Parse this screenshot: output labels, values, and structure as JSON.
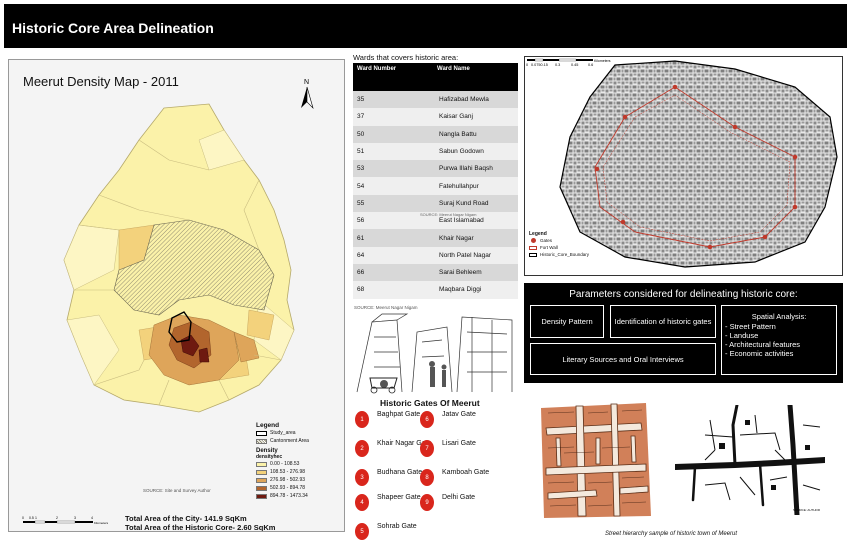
{
  "header": {
    "title": "Historic Core Area Delineation"
  },
  "density_map": {
    "title": "Meerut Density Map - 2011",
    "north": "N",
    "legend": {
      "title": "Legend",
      "study_area": "Study_area",
      "cantonment": "Cantonment Area",
      "density_title": "Density",
      "density_sub": "densityhec",
      "classes": [
        {
          "label": "0.00 - 108.53",
          "color": "#fbf2a9"
        },
        {
          "label": "108.53 - 276.98",
          "color": "#f3d27c"
        },
        {
          "label": "276.98 - 502.93",
          "color": "#dea55a"
        },
        {
          "label": "502.93 - 894.78",
          "color": "#b2652d"
        },
        {
          "label": "894.78 - 1473.34",
          "color": "#6e1a10"
        }
      ]
    },
    "source": "SOURCE: Site and Survey Author",
    "scale_labels": [
      "0",
      "0.5",
      "1",
      "2",
      "3",
      "4"
    ],
    "scale_unit": "Kilometers",
    "total_city": "Total Area of the City- 141.9 SqKm",
    "total_core": "Total Area of the Historic Core- 2.60 SqKm"
  },
  "wards": {
    "caption": "Wards that covers historic area:",
    "col_number": "Ward Number",
    "col_name": "Ward Name",
    "rows": [
      {
        "number": "35",
        "name": "Hafizabad Mewla"
      },
      {
        "number": "37",
        "name": "Kaisar Ganj"
      },
      {
        "number": "50",
        "name": "Nangla Battu"
      },
      {
        "number": "51",
        "name": "Sabun Godown"
      },
      {
        "number": "53",
        "name": "Purwa Illahi Baqsh"
      },
      {
        "number": "54",
        "name": "Fatehullahpur"
      },
      {
        "number": "55",
        "name": "Suraj Kund Road"
      },
      {
        "number": "56",
        "name": "East Islamabad"
      },
      {
        "number": "61",
        "name": "Khair Nagar"
      },
      {
        "number": "64",
        "name": "North Patel Nagar"
      },
      {
        "number": "66",
        "name": "Sarai Behleem"
      },
      {
        "number": "68",
        "name": "Maqbara Diggi"
      }
    ],
    "source": "SOURCE: Meerut Nagar Nigam"
  },
  "sketch": {
    "source": "SOURCE: Meerut Nagar Nigam"
  },
  "gates": {
    "title": "Historic Gates Of Meerut",
    "items": [
      {
        "number": "1",
        "name": "Baghpat Gate"
      },
      {
        "number": "2",
        "name": "Khair Nagar Gate"
      },
      {
        "number": "3",
        "name": "Budhana Gate"
      },
      {
        "number": "4",
        "name": "Shapeer Gate"
      },
      {
        "number": "5",
        "name": "Sohrab Gate"
      },
      {
        "number": "6",
        "name": "Jatav Gate"
      },
      {
        "number": "7",
        "name": "Lisari Gate"
      },
      {
        "number": "8",
        "name": "Kamboah Gate"
      },
      {
        "number": "9",
        "name": "Delhi Gate"
      }
    ]
  },
  "core_map": {
    "legend_title": "Legend",
    "legend_items": [
      "Gates",
      "Fort Wall",
      "Historic_Core_Boundary"
    ],
    "scale_labels": [
      "0",
      "0.0750.15",
      "0.3",
      "0.45",
      "0.6"
    ],
    "scale_unit": "Kilometers"
  },
  "parameters": {
    "title": "Parameters considered for delineating historic core:",
    "density": "Density Pattern",
    "gates": "Identification of historic gates",
    "literary": "Literary Sources and Oral Interviews",
    "spatial_title": "Spatial Analysis:",
    "spatial_items": [
      "- Street Pattern",
      "- Landuse",
      "- Architectural features",
      "- Economic activities"
    ]
  },
  "street": {
    "caption": "Street hierarchy sample of historic town of Meerut",
    "source": "SOURCE: AUTHOR"
  }
}
